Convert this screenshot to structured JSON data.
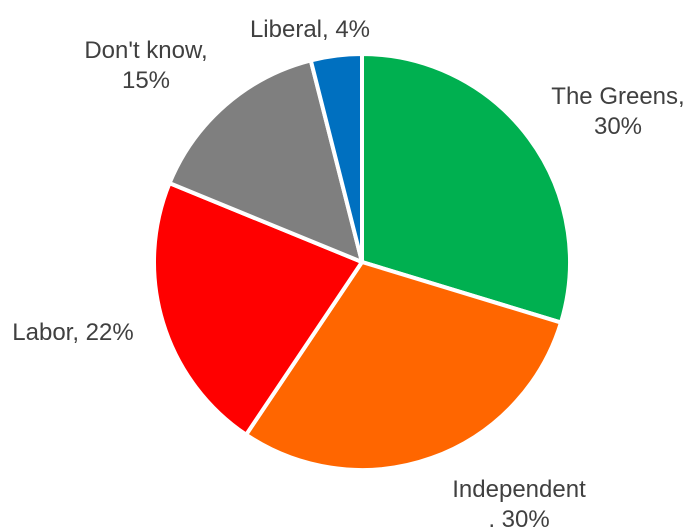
{
  "chart_data": {
    "type": "pie",
    "title": "",
    "start_angle_deg": 0,
    "direction": "clockwise",
    "legend": "none",
    "slices": [
      {
        "label": "The Greens",
        "value": 30,
        "display": [
          "The Greens,",
          "30%"
        ],
        "color": "#00b050"
      },
      {
        "label": "Independent",
        "value": 30,
        "display": [
          "Independent",
          ", 30%"
        ],
        "color": "#ff6600"
      },
      {
        "label": "Labor",
        "value": 22,
        "display": [
          "Labor, 22%"
        ],
        "color": "#ff0000"
      },
      {
        "label": "Don't know",
        "value": 15,
        "display": [
          "Don't know,",
          "15%"
        ],
        "color": "#7f7f7f"
      },
      {
        "label": "Liberal",
        "value": 4,
        "display": [
          "Liberal, 4%"
        ],
        "color": "#0070c0"
      }
    ]
  }
}
